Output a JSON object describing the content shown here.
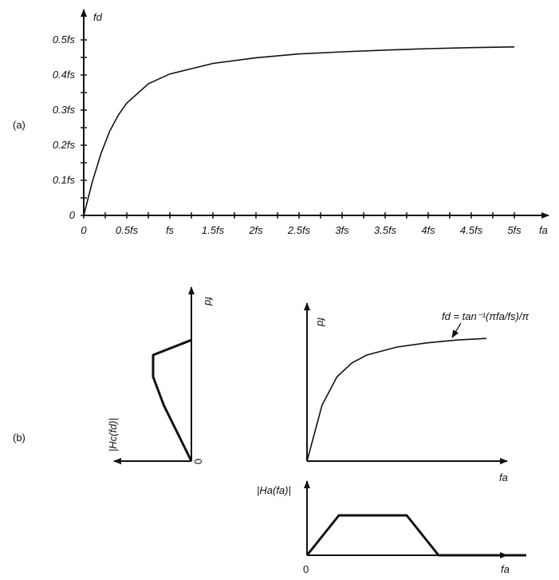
{
  "panel_labels": {
    "a": "(a)",
    "b": "(b)"
  },
  "chart_data": [
    {
      "type": "line",
      "panel": "(a)",
      "xlabel": "fa",
      "ylabel": "fd",
      "xlim": [
        0,
        5
      ],
      "ylim": [
        0,
        0.5
      ],
      "x_ticks": [
        "0",
        "0.5fs",
        "fs",
        "1.5fs",
        "2fs",
        "2.5fs",
        "3fs",
        "3.5fs",
        "4fs",
        "4.5fs",
        "5fs"
      ],
      "y_ticks": [
        "0",
        "0.1fs",
        "0.2fs",
        "0.3fs",
        "0.4fs",
        "0.5fs"
      ],
      "series": [
        {
          "x": [
            0,
            0.1,
            0.2,
            0.3,
            0.4,
            0.5,
            0.75,
            1.0,
            1.5,
            2.0,
            2.5,
            3.0,
            3.5,
            4.0,
            4.5,
            5.0
          ],
          "y": [
            0,
            0.096,
            0.176,
            0.239,
            0.285,
            0.32,
            0.375,
            0.403,
            0.433,
            0.449,
            0.46,
            0.466,
            0.471,
            0.475,
            0.478,
            0.48
          ]
        }
      ]
    },
    {
      "type": "line",
      "panel": "(b) mapping",
      "xlabel": "fa",
      "ylabel": "fd",
      "annotation": "fd = tan⁻¹(πfa/fs)/π",
      "series": [
        {
          "x": [
            0,
            0.25,
            0.5,
            0.75,
            1.0,
            1.5,
            2.0,
            2.5,
            3.0
          ],
          "y": [
            0,
            0.212,
            0.32,
            0.373,
            0.403,
            0.433,
            0.449,
            0.46,
            0.466
          ]
        }
      ]
    },
    {
      "type": "line",
      "panel": "(b) analog response",
      "xlabel": "fa",
      "ylabel": "|Ha(fa)|",
      "origin_label": "0",
      "series": [
        {
          "x": [
            0,
            0.32,
            1.0,
            1.32,
            2.2
          ],
          "y": [
            0,
            1,
            1,
            0,
            0
          ]
        }
      ]
    },
    {
      "type": "line",
      "panel": "(b) digital response",
      "xlabel": "|Hc(fd)|",
      "ylabel": "fd",
      "origin_label": "0",
      "series": [
        {
          "x": [
            0,
            0.72,
            1.0,
            1.0,
            0.0
          ],
          "y": [
            0,
            0.212,
            0.32,
            0.403,
            0.46
          ]
        }
      ]
    }
  ]
}
